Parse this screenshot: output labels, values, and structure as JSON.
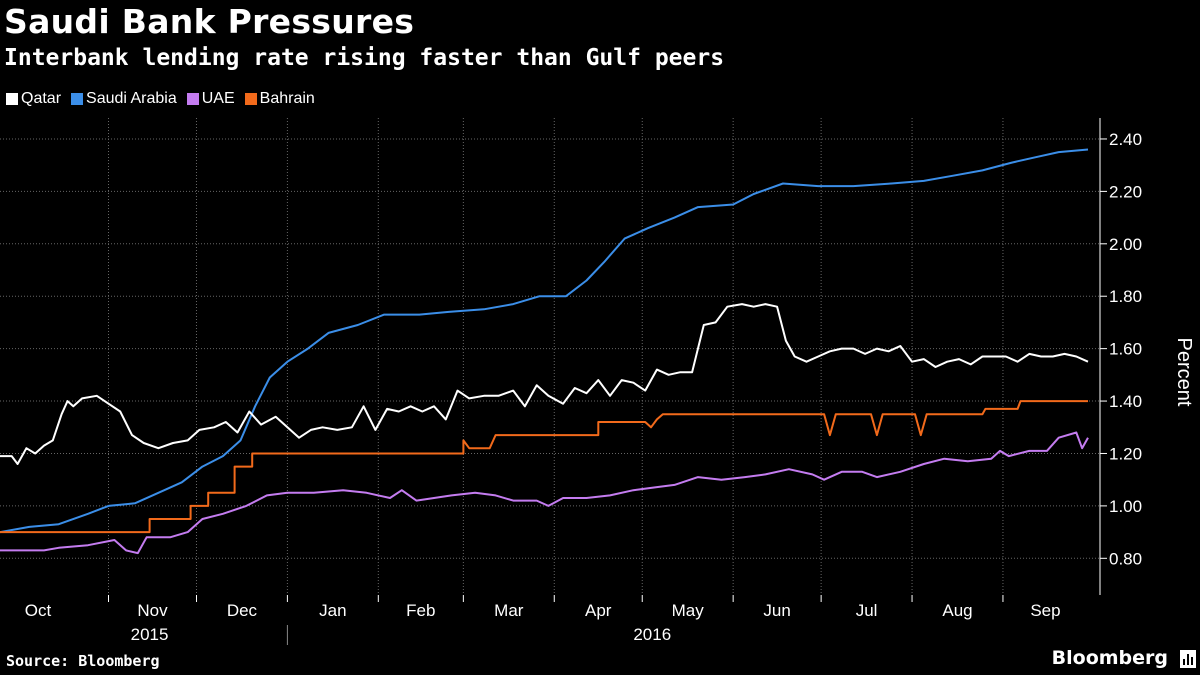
{
  "chart_data": {
    "type": "line",
    "title": "Saudi Bank Pressures",
    "subtitle": "Interbank lending rate rising faster than Gulf peers",
    "ylabel": "Percent",
    "xlabel": "",
    "ylim": [
      0.66,
      2.48
    ],
    "yticks": [
      "0.80",
      "1.00",
      "1.20",
      "1.40",
      "1.60",
      "1.80",
      "2.00",
      "2.20",
      "2.40"
    ],
    "ytick_values": [
      0.8,
      1.0,
      1.2,
      1.4,
      1.6,
      1.8,
      2.0,
      2.2,
      2.4
    ],
    "grid": true,
    "legend_position": "top-left",
    "x_domain": [
      "2015-09-25",
      "2016-09-30"
    ],
    "x_months": [
      {
        "label": "Oct",
        "date": "2015-10-01"
      },
      {
        "label": "Nov",
        "date": "2015-11-01"
      },
      {
        "label": "Dec",
        "date": "2015-12-01"
      },
      {
        "label": "Jan",
        "date": "2016-01-01"
      },
      {
        "label": "Feb",
        "date": "2016-02-01"
      },
      {
        "label": "Mar",
        "date": "2016-03-01"
      },
      {
        "label": "Apr",
        "date": "2016-04-01"
      },
      {
        "label": "May",
        "date": "2016-05-01"
      },
      {
        "label": "Jun",
        "date": "2016-06-01"
      },
      {
        "label": "Jul",
        "date": "2016-07-01"
      },
      {
        "label": "Aug",
        "date": "2016-08-01"
      },
      {
        "label": "Sep",
        "date": "2016-09-01"
      }
    ],
    "x_years": [
      {
        "label": "2015",
        "date": "2015-11-15"
      },
      {
        "label": "2016",
        "date": "2016-05-01"
      }
    ],
    "series": [
      {
        "name": "Saudi Arabia",
        "color": "#3b8ee8",
        "points": [
          [
            "2015-09-25",
            0.9
          ],
          [
            "2015-10-05",
            0.92
          ],
          [
            "2015-10-15",
            0.93
          ],
          [
            "2015-10-25",
            0.97
          ],
          [
            "2015-11-01",
            1.0
          ],
          [
            "2015-11-10",
            1.01
          ],
          [
            "2015-11-18",
            1.05
          ],
          [
            "2015-11-26",
            1.09
          ],
          [
            "2015-12-03",
            1.15
          ],
          [
            "2015-12-10",
            1.19
          ],
          [
            "2015-12-16",
            1.25
          ],
          [
            "2015-12-21",
            1.38
          ],
          [
            "2015-12-26",
            1.49
          ],
          [
            "2016-01-01",
            1.55
          ],
          [
            "2016-01-08",
            1.6
          ],
          [
            "2016-01-15",
            1.66
          ],
          [
            "2016-01-25",
            1.69
          ],
          [
            "2016-02-03",
            1.73
          ],
          [
            "2016-02-15",
            1.73
          ],
          [
            "2016-02-25",
            1.74
          ],
          [
            "2016-03-08",
            1.75
          ],
          [
            "2016-03-18",
            1.77
          ],
          [
            "2016-03-27",
            1.8
          ],
          [
            "2016-04-05",
            1.8
          ],
          [
            "2016-04-12",
            1.86
          ],
          [
            "2016-04-18",
            1.93
          ],
          [
            "2016-04-25",
            2.02
          ],
          [
            "2016-05-03",
            2.06
          ],
          [
            "2016-05-12",
            2.1
          ],
          [
            "2016-05-20",
            2.14
          ],
          [
            "2016-06-01",
            2.15
          ],
          [
            "2016-06-08",
            2.19
          ],
          [
            "2016-06-18",
            2.23
          ],
          [
            "2016-06-30",
            2.22
          ],
          [
            "2016-07-12",
            2.22
          ],
          [
            "2016-07-25",
            2.23
          ],
          [
            "2016-08-05",
            2.24
          ],
          [
            "2016-08-15",
            2.26
          ],
          [
            "2016-08-25",
            2.28
          ],
          [
            "2016-09-04",
            2.31
          ],
          [
            "2016-09-12",
            2.33
          ],
          [
            "2016-09-20",
            2.35
          ],
          [
            "2016-09-30",
            2.36
          ]
        ]
      },
      {
        "name": "Qatar",
        "color": "#ffffff",
        "points": [
          [
            "2015-09-25",
            1.19
          ],
          [
            "2015-09-29",
            1.19
          ],
          [
            "2015-10-01",
            1.16
          ],
          [
            "2015-10-04",
            1.22
          ],
          [
            "2015-10-07",
            1.2
          ],
          [
            "2015-10-10",
            1.23
          ],
          [
            "2015-10-13",
            1.25
          ],
          [
            "2015-10-16",
            1.35
          ],
          [
            "2015-10-18",
            1.4
          ],
          [
            "2015-10-20",
            1.38
          ],
          [
            "2015-10-23",
            1.41
          ],
          [
            "2015-10-28",
            1.42
          ],
          [
            "2015-11-01",
            1.39
          ],
          [
            "2015-11-05",
            1.36
          ],
          [
            "2015-11-09",
            1.27
          ],
          [
            "2015-11-13",
            1.24
          ],
          [
            "2015-11-18",
            1.22
          ],
          [
            "2015-11-23",
            1.24
          ],
          [
            "2015-11-28",
            1.25
          ],
          [
            "2015-12-02",
            1.29
          ],
          [
            "2015-12-07",
            1.3
          ],
          [
            "2015-12-11",
            1.32
          ],
          [
            "2015-12-15",
            1.28
          ],
          [
            "2015-12-19",
            1.36
          ],
          [
            "2015-12-23",
            1.31
          ],
          [
            "2015-12-28",
            1.34
          ],
          [
            "2016-01-01",
            1.3
          ],
          [
            "2016-01-05",
            1.26
          ],
          [
            "2016-01-09",
            1.29
          ],
          [
            "2016-01-13",
            1.3
          ],
          [
            "2016-01-18",
            1.29
          ],
          [
            "2016-01-23",
            1.3
          ],
          [
            "2016-01-27",
            1.38
          ],
          [
            "2016-01-31",
            1.29
          ],
          [
            "2016-02-04",
            1.37
          ],
          [
            "2016-02-08",
            1.36
          ],
          [
            "2016-02-12",
            1.38
          ],
          [
            "2016-02-16",
            1.36
          ],
          [
            "2016-02-20",
            1.38
          ],
          [
            "2016-02-24",
            1.33
          ],
          [
            "2016-02-28",
            1.44
          ],
          [
            "2016-03-03",
            1.41
          ],
          [
            "2016-03-08",
            1.42
          ],
          [
            "2016-03-13",
            1.42
          ],
          [
            "2016-03-18",
            1.44
          ],
          [
            "2016-03-22",
            1.38
          ],
          [
            "2016-03-26",
            1.46
          ],
          [
            "2016-03-30",
            1.42
          ],
          [
            "2016-04-04",
            1.39
          ],
          [
            "2016-04-08",
            1.45
          ],
          [
            "2016-04-12",
            1.43
          ],
          [
            "2016-04-16",
            1.48
          ],
          [
            "2016-04-20",
            1.42
          ],
          [
            "2016-04-24",
            1.48
          ],
          [
            "2016-04-28",
            1.47
          ],
          [
            "2016-05-02",
            1.44
          ],
          [
            "2016-05-06",
            1.52
          ],
          [
            "2016-05-10",
            1.5
          ],
          [
            "2016-05-14",
            1.51
          ],
          [
            "2016-05-18",
            1.51
          ],
          [
            "2016-05-22",
            1.69
          ],
          [
            "2016-05-26",
            1.7
          ],
          [
            "2016-05-30",
            1.76
          ],
          [
            "2016-06-04",
            1.77
          ],
          [
            "2016-06-08",
            1.76
          ],
          [
            "2016-06-12",
            1.77
          ],
          [
            "2016-06-16",
            1.76
          ],
          [
            "2016-06-19",
            1.63
          ],
          [
            "2016-06-22",
            1.57
          ],
          [
            "2016-06-26",
            1.55
          ],
          [
            "2016-06-30",
            1.57
          ],
          [
            "2016-07-04",
            1.59
          ],
          [
            "2016-07-08",
            1.6
          ],
          [
            "2016-07-12",
            1.6
          ],
          [
            "2016-07-16",
            1.58
          ],
          [
            "2016-07-20",
            1.6
          ],
          [
            "2016-07-24",
            1.59
          ],
          [
            "2016-07-28",
            1.61
          ],
          [
            "2016-08-01",
            1.55
          ],
          [
            "2016-08-05",
            1.56
          ],
          [
            "2016-08-09",
            1.53
          ],
          [
            "2016-08-13",
            1.55
          ],
          [
            "2016-08-17",
            1.56
          ],
          [
            "2016-08-21",
            1.54
          ],
          [
            "2016-08-25",
            1.57
          ],
          [
            "2016-08-29",
            1.57
          ],
          [
            "2016-09-02",
            1.57
          ],
          [
            "2016-09-06",
            1.55
          ],
          [
            "2016-09-10",
            1.58
          ],
          [
            "2016-09-14",
            1.57
          ],
          [
            "2016-09-18",
            1.57
          ],
          [
            "2016-09-22",
            1.58
          ],
          [
            "2016-09-26",
            1.57
          ],
          [
            "2016-09-30",
            1.55
          ]
        ]
      },
      {
        "name": "Bahrain",
        "color": "#f26a1b",
        "points": [
          [
            "2015-09-25",
            0.9
          ],
          [
            "2015-11-15",
            0.9
          ],
          [
            "2015-11-15",
            0.95
          ],
          [
            "2015-11-29",
            0.95
          ],
          [
            "2015-11-29",
            1.0
          ],
          [
            "2015-12-05",
            1.0
          ],
          [
            "2015-12-05",
            1.05
          ],
          [
            "2015-12-14",
            1.05
          ],
          [
            "2015-12-14",
            1.15
          ],
          [
            "2015-12-20",
            1.15
          ],
          [
            "2015-12-20",
            1.2
          ],
          [
            "2016-03-01",
            1.2
          ],
          [
            "2016-03-01",
            1.25
          ],
          [
            "2016-03-03",
            1.22
          ],
          [
            "2016-03-10",
            1.22
          ],
          [
            "2016-03-12",
            1.27
          ],
          [
            "2016-04-16",
            1.27
          ],
          [
            "2016-04-16",
            1.32
          ],
          [
            "2016-05-02",
            1.32
          ],
          [
            "2016-05-04",
            1.3
          ],
          [
            "2016-05-06",
            1.33
          ],
          [
            "2016-05-08",
            1.35
          ],
          [
            "2016-07-02",
            1.35
          ],
          [
            "2016-07-04",
            1.27
          ],
          [
            "2016-07-06",
            1.35
          ],
          [
            "2016-07-18",
            1.35
          ],
          [
            "2016-07-20",
            1.27
          ],
          [
            "2016-07-22",
            1.35
          ],
          [
            "2016-08-02",
            1.35
          ],
          [
            "2016-08-04",
            1.27
          ],
          [
            "2016-08-06",
            1.35
          ],
          [
            "2016-08-25",
            1.35
          ],
          [
            "2016-08-26",
            1.37
          ],
          [
            "2016-09-06",
            1.37
          ],
          [
            "2016-09-07",
            1.4
          ],
          [
            "2016-09-30",
            1.4
          ]
        ]
      },
      {
        "name": "UAE",
        "color": "#c47cf0",
        "points": [
          [
            "2015-09-25",
            0.83
          ],
          [
            "2015-10-10",
            0.83
          ],
          [
            "2015-10-15",
            0.84
          ],
          [
            "2015-10-25",
            0.85
          ],
          [
            "2015-11-03",
            0.87
          ],
          [
            "2015-11-07",
            0.83
          ],
          [
            "2015-11-11",
            0.82
          ],
          [
            "2015-11-14",
            0.88
          ],
          [
            "2015-11-22",
            0.88
          ],
          [
            "2015-11-28",
            0.9
          ],
          [
            "2015-12-03",
            0.95
          ],
          [
            "2015-12-10",
            0.97
          ],
          [
            "2015-12-18",
            1.0
          ],
          [
            "2015-12-25",
            1.04
          ],
          [
            "2016-01-01",
            1.05
          ],
          [
            "2016-01-10",
            1.05
          ],
          [
            "2016-01-20",
            1.06
          ],
          [
            "2016-01-28",
            1.05
          ],
          [
            "2016-02-05",
            1.03
          ],
          [
            "2016-02-09",
            1.06
          ],
          [
            "2016-02-14",
            1.02
          ],
          [
            "2016-02-20",
            1.03
          ],
          [
            "2016-02-26",
            1.04
          ],
          [
            "2016-03-05",
            1.05
          ],
          [
            "2016-03-12",
            1.04
          ],
          [
            "2016-03-18",
            1.02
          ],
          [
            "2016-03-26",
            1.02
          ],
          [
            "2016-03-30",
            1.0
          ],
          [
            "2016-04-04",
            1.03
          ],
          [
            "2016-04-12",
            1.03
          ],
          [
            "2016-04-20",
            1.04
          ],
          [
            "2016-04-28",
            1.06
          ],
          [
            "2016-05-05",
            1.07
          ],
          [
            "2016-05-12",
            1.08
          ],
          [
            "2016-05-20",
            1.11
          ],
          [
            "2016-05-28",
            1.1
          ],
          [
            "2016-06-05",
            1.11
          ],
          [
            "2016-06-12",
            1.12
          ],
          [
            "2016-06-20",
            1.14
          ],
          [
            "2016-06-28",
            1.12
          ],
          [
            "2016-07-02",
            1.1
          ],
          [
            "2016-07-08",
            1.13
          ],
          [
            "2016-07-15",
            1.13
          ],
          [
            "2016-07-20",
            1.11
          ],
          [
            "2016-07-28",
            1.13
          ],
          [
            "2016-08-05",
            1.16
          ],
          [
            "2016-08-12",
            1.18
          ],
          [
            "2016-08-20",
            1.17
          ],
          [
            "2016-08-28",
            1.18
          ],
          [
            "2016-08-31",
            1.21
          ],
          [
            "2016-09-03",
            1.19
          ],
          [
            "2016-09-10",
            1.21
          ],
          [
            "2016-09-16",
            1.21
          ],
          [
            "2016-09-20",
            1.26
          ],
          [
            "2016-09-26",
            1.28
          ],
          [
            "2016-09-28",
            1.22
          ],
          [
            "2016-09-30",
            1.26
          ]
        ]
      }
    ]
  },
  "legend": [
    {
      "label": "Qatar",
      "color": "#ffffff"
    },
    {
      "label": "Saudi Arabia",
      "color": "#3b8ee8"
    },
    {
      "label": "UAE",
      "color": "#c47cf0"
    },
    {
      "label": "Bahrain",
      "color": "#f26a1b"
    }
  ],
  "footer": {
    "source": "Source: Bloomberg",
    "brand": "Bloomberg"
  },
  "colors": {
    "background": "#000000",
    "grid": "#666666",
    "text": "#ffffff"
  }
}
